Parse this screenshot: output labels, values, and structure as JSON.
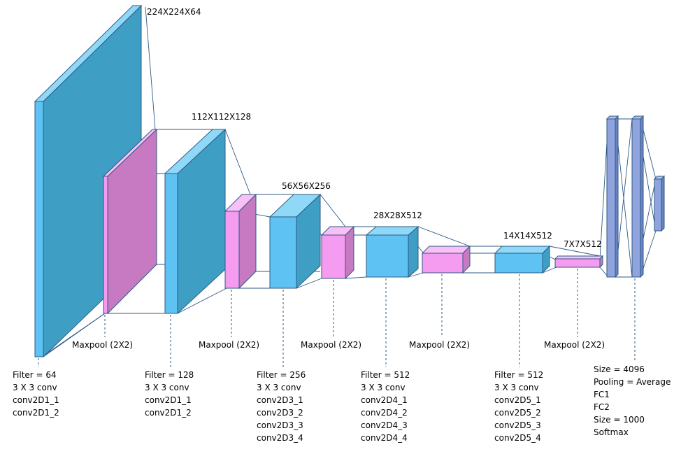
{
  "colors": {
    "conv_front": "#5ec3f2",
    "conv_top": "#8fd8f8",
    "conv_side": "#3f9ec4",
    "pool_front": "#f59cf0",
    "pool_top": "#f9c0f6",
    "pool_side": "#c77ac2",
    "fc_front": "#8fa3dc",
    "fc_top": "#b2c2ea",
    "fc_side": "#6b82c2",
    "edge": "#2e5a86"
  },
  "dimension_labels": {
    "l1": "224X224X64",
    "l2": "112X112X128",
    "l3": "56X56X256",
    "l4": "28X28X512",
    "l5": "14X14X512",
    "l6": "7X7X512"
  },
  "maxpool_labels": {
    "m1": "Maxpool (2X2)",
    "m2": "Maxpool (2X2)",
    "m3": "Maxpool (2X2)",
    "m4": "Maxpool (2X2)",
    "m5": "Maxpool (2X2)"
  },
  "blocks": {
    "b1": [
      "Filter = 64",
      "3 X 3 conv",
      "conv2D1_1",
      "conv2D1_2"
    ],
    "b2": [
      "Filter = 128",
      "3 X 3 conv",
      "conv2D1_1",
      "conv2D1_2"
    ],
    "b3": [
      "Filter = 256",
      "3 X 3 conv",
      "conv2D3_1",
      "conv2D3_2",
      "conv2D3_3",
      "conv2D3_4"
    ],
    "b4": [
      "Filter = 512",
      "3 X 3 conv",
      "conv2D4_1",
      "conv2D4_2",
      "conv2D4_3",
      "conv2D4_4"
    ],
    "b5": [
      "Filter = 512",
      "3 X 3 conv",
      "conv2D5_1",
      "conv2D5_2",
      "conv2D5_3",
      "conv2D5_4"
    ],
    "fc": [
      "Size = 4096",
      "Pooling = Average",
      "FC1",
      "FC2",
      "Size = 1000",
      "Softmax"
    ]
  }
}
